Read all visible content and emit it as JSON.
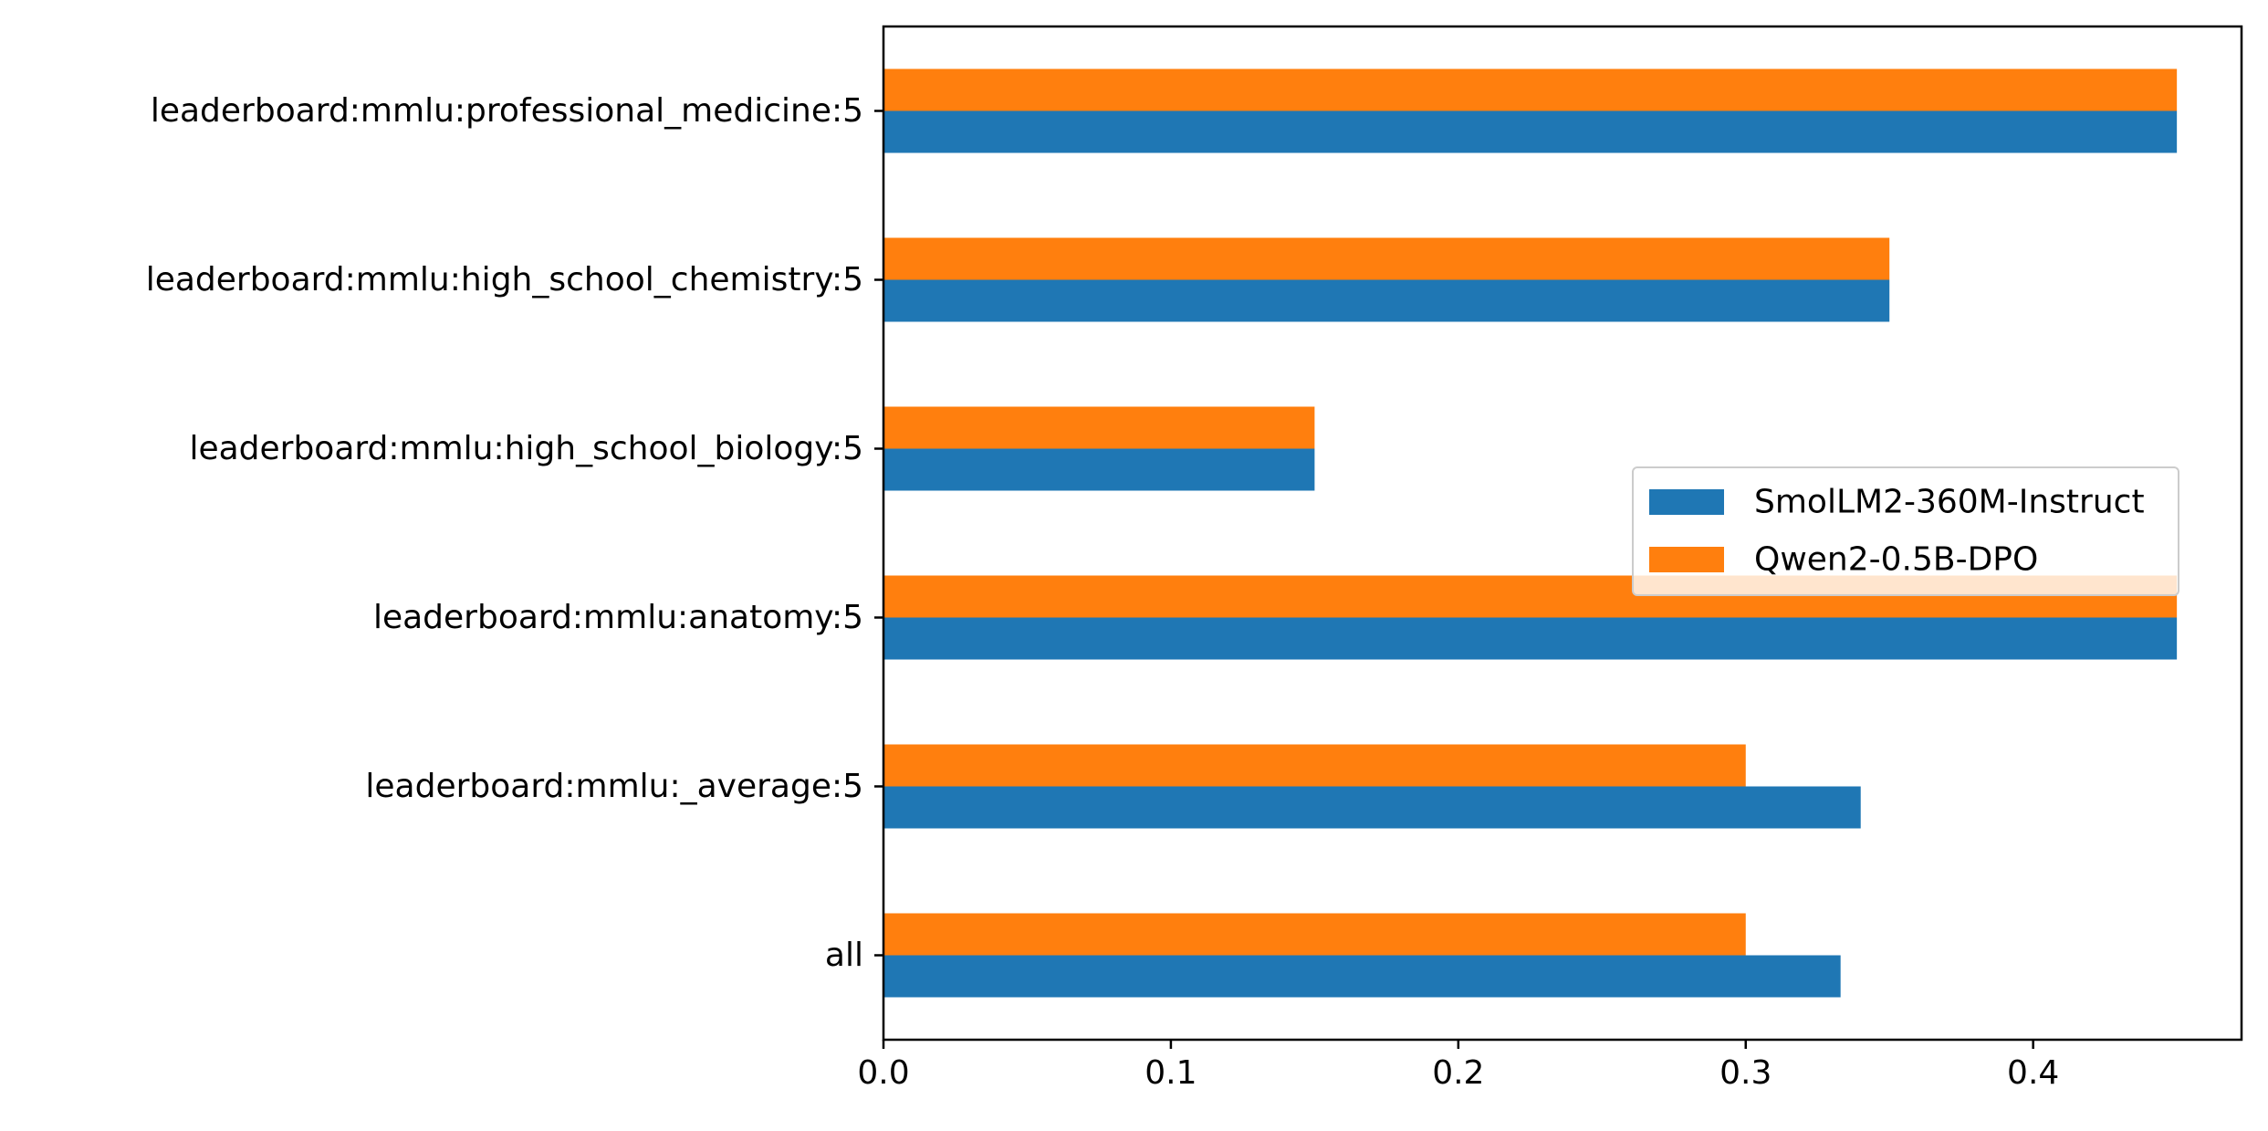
{
  "chart_data": {
    "type": "bar",
    "orientation": "horizontal",
    "categories": [
      "all",
      "leaderboard:mmlu:_average:5",
      "leaderboard:mmlu:anatomy:5",
      "leaderboard:mmlu:high_school_biology:5",
      "leaderboard:mmlu:high_school_chemistry:5",
      "leaderboard:mmlu:professional_medicine:5"
    ],
    "series": [
      {
        "name": "SmolLM2-360M-Instruct",
        "color": "#1f77b4",
        "values": [
          0.333,
          0.34,
          0.45,
          0.15,
          0.35,
          0.45
        ]
      },
      {
        "name": "Qwen2-0.5B-DPO",
        "color": "#ff7f0e",
        "values": [
          0.3,
          0.3,
          0.45,
          0.15,
          0.35,
          0.45
        ]
      }
    ],
    "xticks": [
      "0.0",
      "0.1",
      "0.2",
      "0.3",
      "0.4"
    ],
    "xlim": [
      0,
      0.4725
    ],
    "title": "",
    "xlabel": "",
    "ylabel": "",
    "grid": false,
    "legend_position": "center-right"
  }
}
